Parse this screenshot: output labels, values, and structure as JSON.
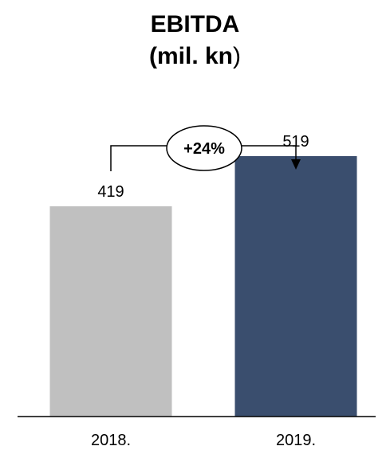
{
  "title_line1": "EBITDA",
  "title_line2": "(mil. kn",
  "title_line2_close": ")",
  "chart_data": {
    "type": "bar",
    "categories": [
      "2018.",
      "2019."
    ],
    "values": [
      419,
      519
    ],
    "data_labels": [
      "419",
      "519"
    ],
    "colors": [
      "#c0c0c0",
      "#3a4e6e"
    ],
    "growth_label": "+24%",
    "ylim": [
      0,
      600
    ],
    "grid": false,
    "legend": "none"
  }
}
